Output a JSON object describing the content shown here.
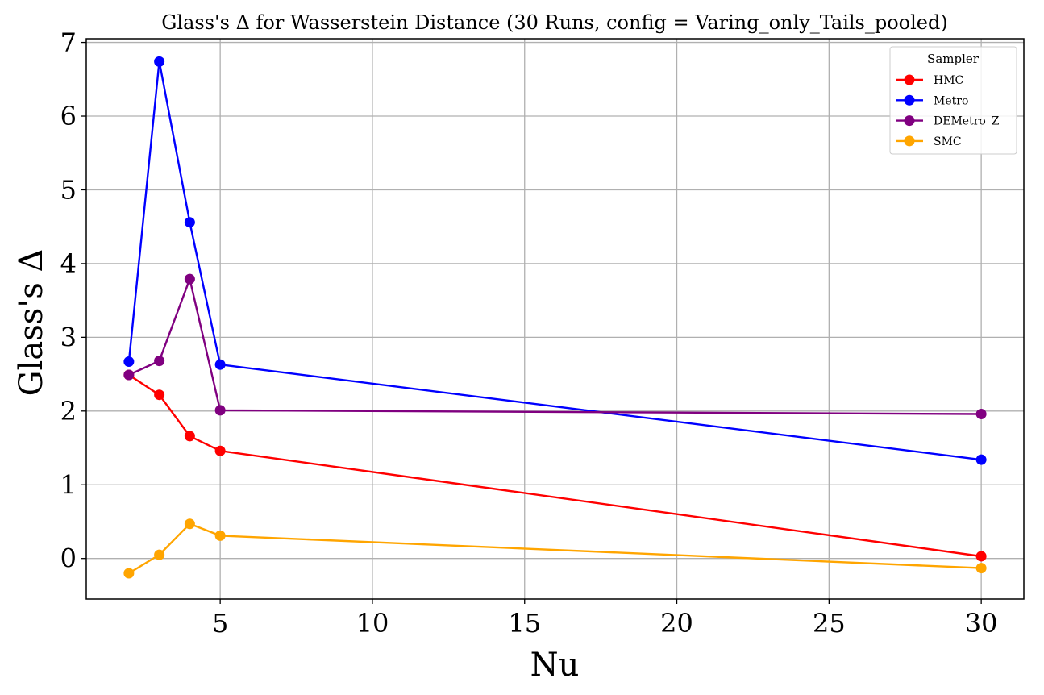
{
  "chart_data": {
    "type": "line",
    "title": "Glass's Δ for Wasserstein Distance (30 Runs, config = Varing_only_Tails_pooled)",
    "xlabel": "Nu",
    "ylabel": "Glass's Δ",
    "xlim": [
      0.6,
      31.4
    ],
    "ylim": [
      -0.55,
      7.05
    ],
    "xticks": [
      5,
      10,
      15,
      20,
      25,
      30
    ],
    "yticks": [
      0,
      1,
      2,
      3,
      4,
      5,
      6,
      7
    ],
    "grid": true,
    "legend": {
      "title": "Sampler",
      "position": "top-right"
    },
    "x": [
      2,
      3,
      4,
      5,
      30
    ],
    "series": [
      {
        "name": "HMC",
        "color": "#ff0000",
        "values": [
          2.49,
          2.22,
          1.66,
          1.46,
          0.03
        ]
      },
      {
        "name": "Metro",
        "color": "#0000ff",
        "values": [
          2.67,
          6.74,
          4.56,
          2.63,
          1.34
        ]
      },
      {
        "name": "DEMetro_Z",
        "color": "#800080",
        "values": [
          2.49,
          2.68,
          3.79,
          2.01,
          1.96
        ]
      },
      {
        "name": "SMC",
        "color": "#ffa500",
        "values": [
          -0.2,
          0.05,
          0.47,
          0.31,
          -0.13
        ]
      }
    ]
  }
}
